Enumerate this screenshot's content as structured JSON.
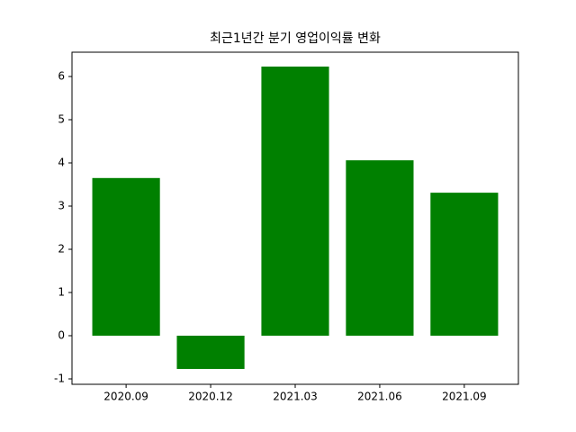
{
  "chart_data": {
    "type": "bar",
    "title": "최근1년간 분기 영업이익률 변화",
    "categories": [
      "2020.09",
      "2020.12",
      "2021.03",
      "2021.06",
      "2021.09"
    ],
    "values": [
      3.65,
      -0.77,
      6.23,
      4.06,
      3.31
    ],
    "color": "#008000",
    "ylim": [
      -1.125,
      6.5625
    ],
    "yticks": [
      -1,
      0,
      1,
      2,
      3,
      4,
      5,
      6
    ],
    "grid": false
  }
}
